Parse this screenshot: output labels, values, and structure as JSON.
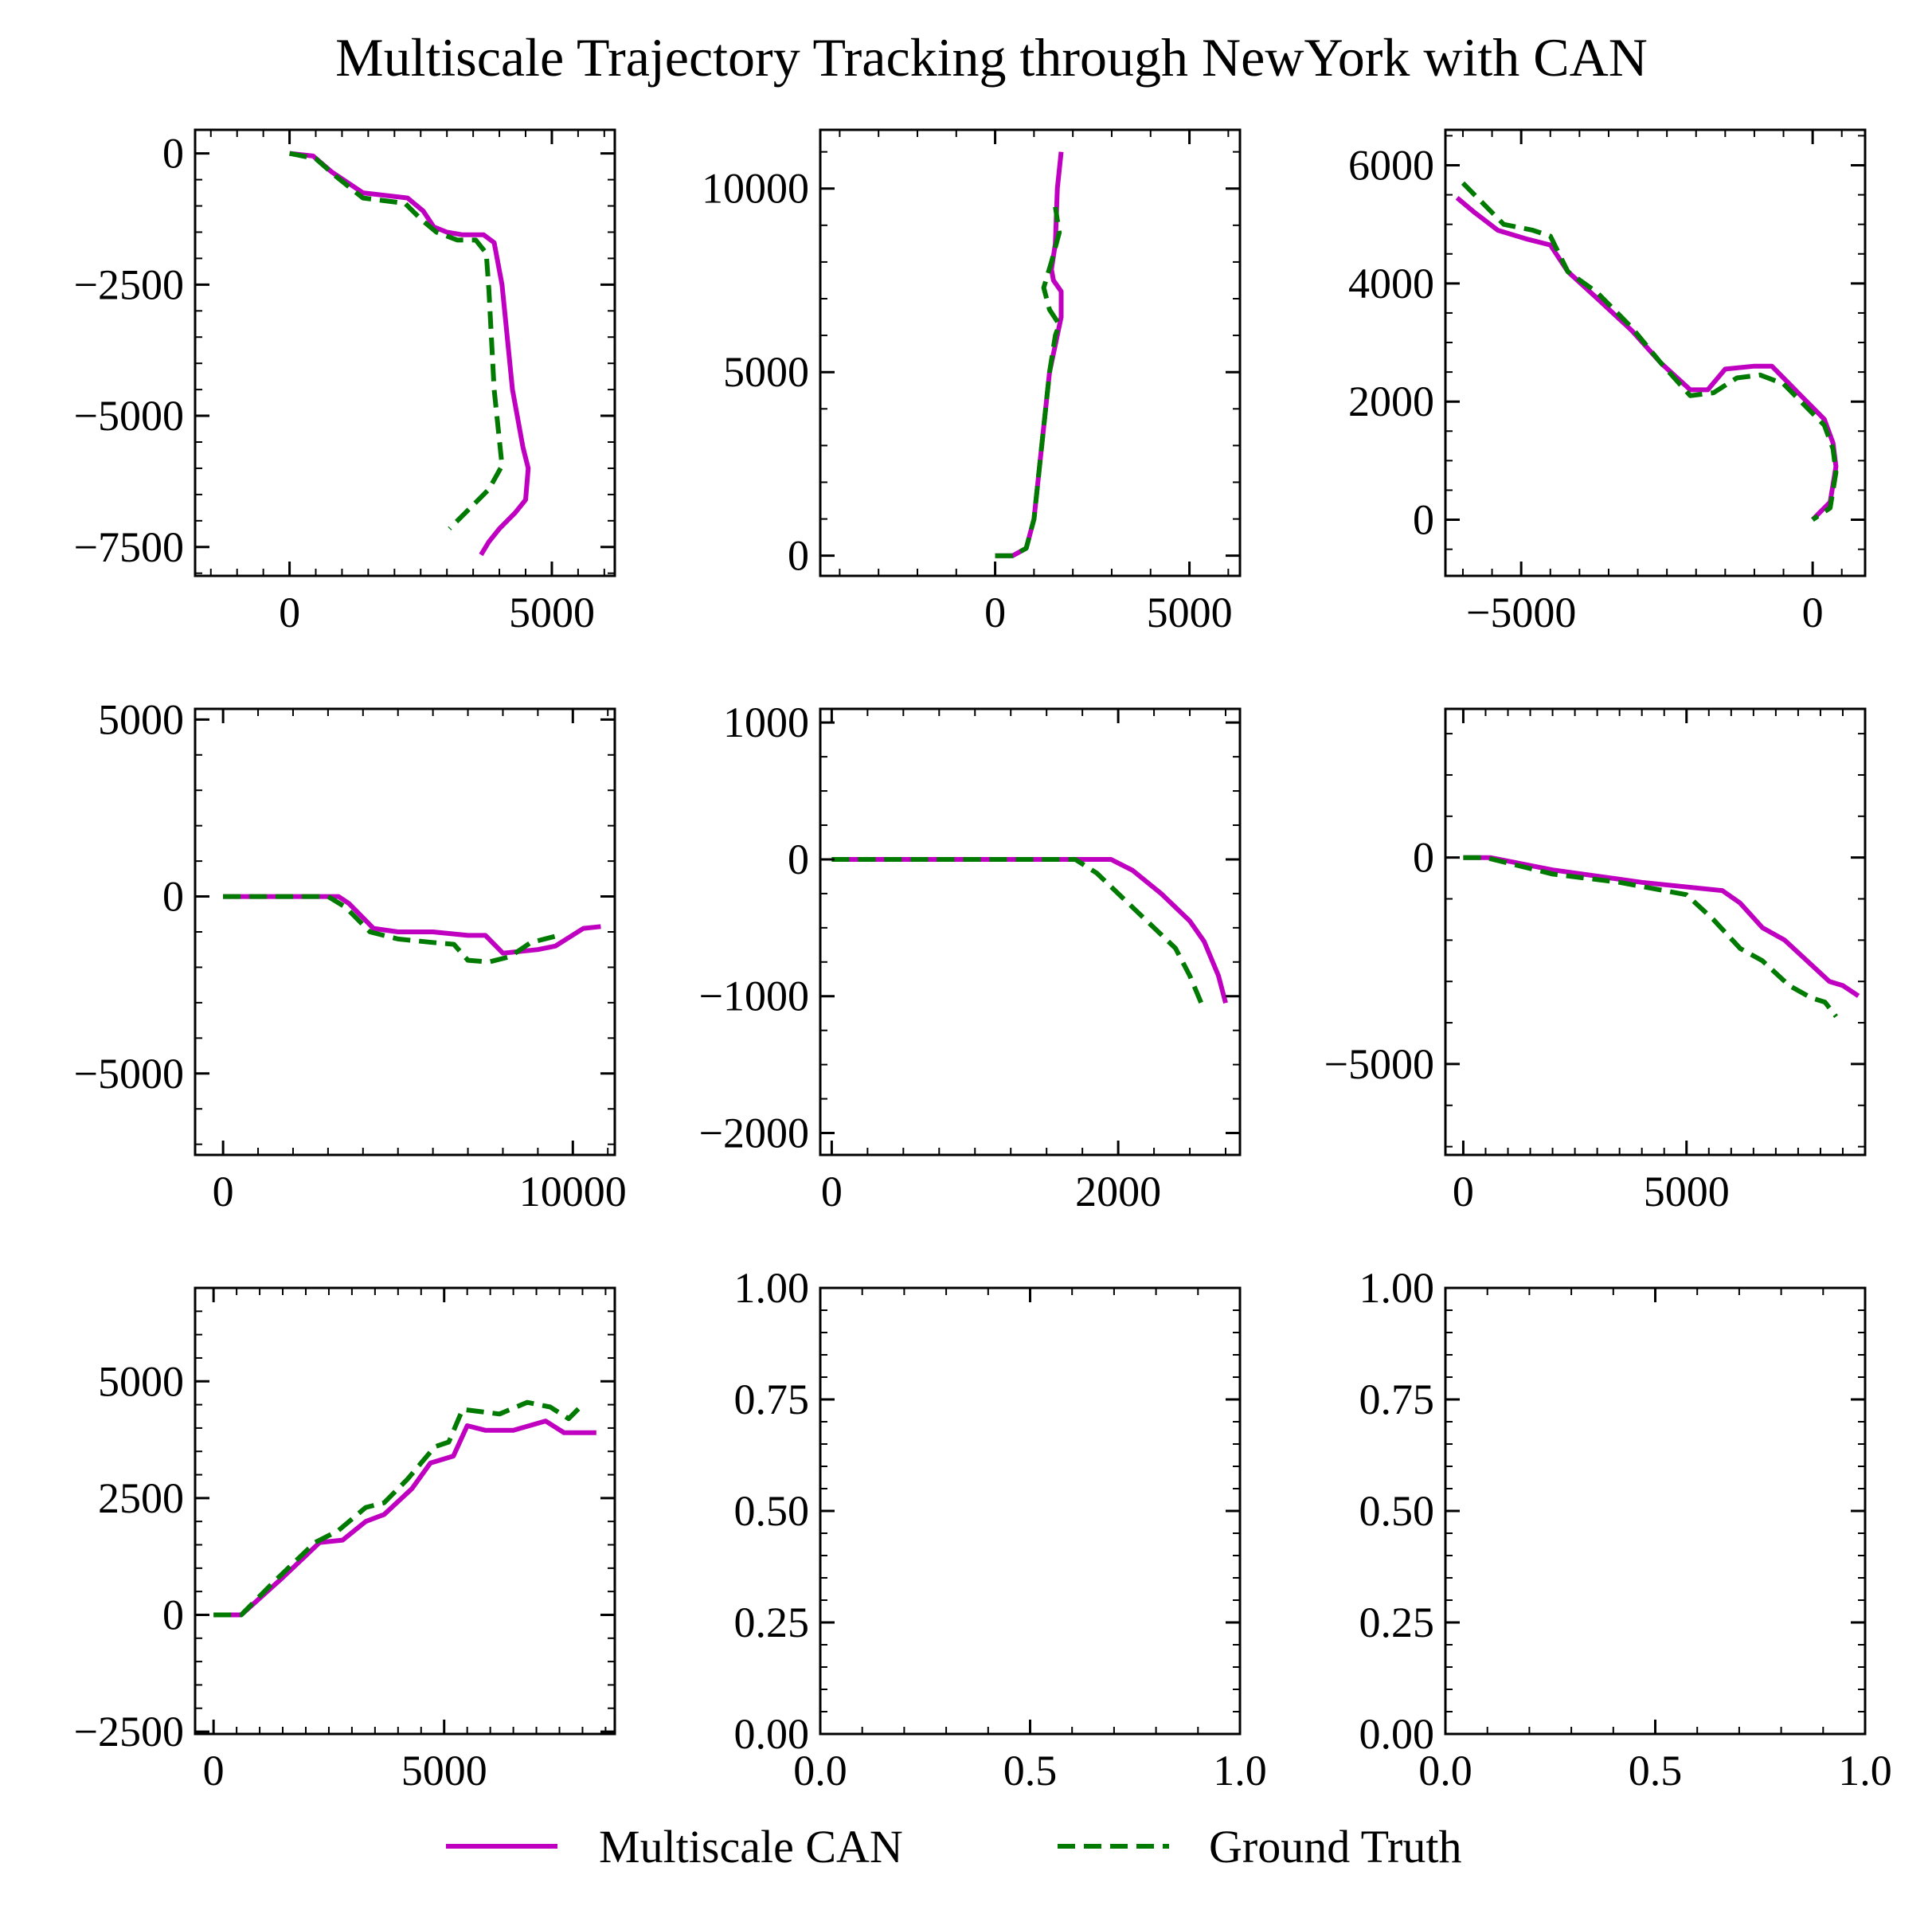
{
  "title": "Multiscale Trajectory Tracking through NewYork with CAN",
  "legend": {
    "placement": "bottom-center",
    "entries": [
      {
        "label": "Multiscale CAN",
        "color": "#c000c0",
        "style": "solid"
      },
      {
        "label": "Ground Truth",
        "color": "#007a00",
        "style": "dashed"
      }
    ]
  },
  "colors": {
    "can": "#c000c0",
    "gt": "#007a00",
    "axis": "#000000"
  },
  "chart_data": [
    {
      "type": "line",
      "xlim": [
        -1800,
        6200
      ],
      "ylim": [
        -8050,
        450
      ],
      "xticks": [
        {
          "v": 0,
          "label": "0"
        },
        {
          "v": 5000,
          "label": "5000"
        }
      ],
      "yticks": [
        {
          "v": 0,
          "label": "0"
        },
        {
          "v": -2500,
          "label": "−2500"
        },
        {
          "v": -5000,
          "label": "−5000"
        },
        {
          "v": -7500,
          "label": "−7500"
        }
      ],
      "xminor": 500,
      "yminor": 500,
      "series": [
        {
          "name": "Multiscale CAN",
          "x": [
            0,
            450,
            800,
            1400,
            2250,
            2550,
            2750,
            3000,
            3300,
            3700,
            3900,
            4050,
            4250,
            4450,
            4550,
            4500,
            4300,
            4000,
            3800,
            3650
          ],
          "y": [
            0,
            -50,
            -350,
            -750,
            -850,
            -1100,
            -1400,
            -1500,
            -1550,
            -1550,
            -1700,
            -2500,
            -4500,
            -5600,
            -6000,
            -6600,
            -6850,
            -7150,
            -7400,
            -7650
          ]
        },
        {
          "name": "Ground Truth",
          "x": [
            0,
            500,
            900,
            1400,
            2200,
            2500,
            2800,
            3200,
            3550,
            3750,
            3800,
            3900,
            4050,
            3800,
            3450,
            3050
          ],
          "y": [
            0,
            -100,
            -450,
            -850,
            -950,
            -1250,
            -1500,
            -1650,
            -1650,
            -1900,
            -2600,
            -4500,
            -5950,
            -6400,
            -6750,
            -7150
          ]
        }
      ]
    },
    {
      "type": "line",
      "xlim": [
        -4500,
        6300
      ],
      "ylim": [
        -550,
        11600
      ],
      "xticks": [
        {
          "v": 0,
          "label": "0"
        },
        {
          "v": 5000,
          "label": "5000"
        }
      ],
      "yticks": [
        {
          "v": 0,
          "label": "0"
        },
        {
          "v": 5000,
          "label": "5000"
        },
        {
          "v": 10000,
          "label": "10000"
        }
      ],
      "xminor": 1000,
      "yminor": 1000,
      "series": [
        {
          "name": "Multiscale CAN",
          "x": [
            0,
            450,
            800,
            1000,
            1200,
            1400,
            1700,
            1700,
            1500,
            1450,
            1550,
            1600,
            1700
          ],
          "y": [
            0,
            0,
            200,
            1000,
            3000,
            5000,
            6500,
            7200,
            7500,
            7800,
            8500,
            10000,
            11000
          ]
        },
        {
          "name": "Ground Truth",
          "x": [
            0,
            450,
            800,
            1000,
            1200,
            1400,
            1550,
            1650,
            1400,
            1250,
            1450,
            1650,
            1550
          ],
          "y": [
            0,
            0,
            200,
            1000,
            3000,
            5000,
            6000,
            6300,
            6700,
            7300,
            8000,
            8800,
            9500
          ]
        }
      ]
    },
    {
      "type": "line",
      "xlim": [
        -6300,
        900
      ],
      "ylim": [
        -950,
        6600
      ],
      "xticks": [
        {
          "v": -5000,
          "label": "−5000"
        },
        {
          "v": 0,
          "label": "0"
        }
      ],
      "yticks": [
        {
          "v": 0,
          "label": "0"
        },
        {
          "v": 2000,
          "label": "2000"
        },
        {
          "v": 4000,
          "label": "4000"
        },
        {
          "v": 6000,
          "label": "6000"
        }
      ],
      "xminor": 500,
      "yminor": 500,
      "series": [
        {
          "name": "Multiscale CAN",
          "x": [
            -6100,
            -5800,
            -5400,
            -4900,
            -4500,
            -4200,
            -3700,
            -3100,
            -2600,
            -2100,
            -1800,
            -1500,
            -1000,
            -700,
            -500,
            -200,
            200,
            350,
            400,
            300,
            0
          ],
          "y": [
            5450,
            5200,
            4900,
            4750,
            4650,
            4200,
            3750,
            3200,
            2650,
            2200,
            2200,
            2550,
            2600,
            2600,
            2400,
            2100,
            1700,
            1300,
            900,
            300,
            0
          ]
        },
        {
          "name": "Ground Truth",
          "x": [
            -6000,
            -5700,
            -5300,
            -4800,
            -4500,
            -4200,
            -3700,
            -3100,
            -2600,
            -2100,
            -1700,
            -1300,
            -900,
            -500,
            -200,
            200,
            350,
            400,
            300,
            0
          ],
          "y": [
            5700,
            5400,
            5000,
            4900,
            4800,
            4200,
            3850,
            3250,
            2650,
            2100,
            2150,
            2400,
            2450,
            2300,
            2000,
            1600,
            1200,
            800,
            200,
            0
          ]
        }
      ]
    },
    {
      "type": "line",
      "xlim": [
        -800,
        11200
      ],
      "ylim": [
        -7300,
        5300
      ],
      "xticks": [
        {
          "v": 0,
          "label": "0"
        },
        {
          "v": 10000,
          "label": "10000"
        }
      ],
      "yticks": [
        {
          "v": -5000,
          "label": "−5000"
        },
        {
          "v": 0,
          "label": "0"
        },
        {
          "v": 5000,
          "label": "5000"
        }
      ],
      "xminor": 1000,
      "yminor": 1000,
      "series": [
        {
          "name": "Multiscale CAN",
          "x": [
            0,
            1500,
            3300,
            3600,
            4300,
            5000,
            6000,
            7000,
            7500,
            8000,
            9000,
            9500,
            10300,
            10800
          ],
          "y": [
            0,
            0,
            0,
            -200,
            -900,
            -1000,
            -1000,
            -1100,
            -1100,
            -1600,
            -1500,
            -1400,
            -900,
            -850
          ]
        },
        {
          "name": "Ground Truth",
          "x": [
            0,
            1500,
            3000,
            3500,
            4200,
            5000,
            6000,
            6600,
            7000,
            7600,
            8200,
            8800,
            9600
          ],
          "y": [
            0,
            0,
            0,
            -300,
            -1000,
            -1200,
            -1300,
            -1350,
            -1800,
            -1850,
            -1700,
            -1300,
            -1100
          ]
        }
      ]
    },
    {
      "type": "line",
      "xlim": [
        -80,
        2850
      ],
      "ylim": [
        -2160,
        1100
      ],
      "xticks": [
        {
          "v": 0,
          "label": "0"
        },
        {
          "v": 2000,
          "label": "2000"
        }
      ],
      "yticks": [
        {
          "v": -2000,
          "label": "−2000"
        },
        {
          "v": -1000,
          "label": "−1000"
        },
        {
          "v": 0,
          "label": "0"
        },
        {
          "v": 1000,
          "label": "1000"
        }
      ],
      "xminor": 250,
      "yminor": 250,
      "series": [
        {
          "name": "Multiscale CAN",
          "x": [
            0,
            1000,
            1950,
            2100,
            2300,
            2500,
            2600,
            2700,
            2750
          ],
          "y": [
            0,
            0,
            0,
            -80,
            -250,
            -450,
            -600,
            -850,
            -1050
          ]
        },
        {
          "name": "Ground Truth",
          "x": [
            0,
            1000,
            1700,
            1850,
            2050,
            2250,
            2400,
            2500,
            2580
          ],
          "y": [
            0,
            0,
            0,
            -100,
            -300,
            -500,
            -650,
            -850,
            -1050
          ]
        }
      ]
    },
    {
      "type": "line",
      "xlim": [
        -400,
        9000
      ],
      "ylim": [
        -7200,
        3600
      ],
      "xticks": [
        {
          "v": 0,
          "label": "0"
        },
        {
          "v": 5000,
          "label": "5000"
        }
      ],
      "yticks": [
        {
          "v": -5000,
          "label": "−5000"
        },
        {
          "v": 0,
          "label": "0"
        }
      ],
      "xminor": 500,
      "yminor": 1000,
      "series": [
        {
          "name": "Multiscale CAN",
          "x": [
            0,
            600,
            2000,
            4000,
            5800,
            6200,
            6700,
            7200,
            7700,
            8200,
            8500,
            8850
          ],
          "y": [
            0,
            0,
            -300,
            -600,
            -800,
            -1100,
            -1700,
            -2000,
            -2500,
            -3000,
            -3100,
            -3350
          ]
        },
        {
          "name": "Ground Truth",
          "x": [
            0,
            500,
            2000,
            3500,
            5000,
            5600,
            6200,
            6700,
            7300,
            7800,
            8100,
            8350
          ],
          "y": [
            0,
            0,
            -400,
            -600,
            -900,
            -1500,
            -2200,
            -2500,
            -3100,
            -3400,
            -3500,
            -3850
          ]
        }
      ]
    },
    {
      "type": "line",
      "xlim": [
        -400,
        8700
      ],
      "ylim": [
        -2550,
        7000
      ],
      "xticks": [
        {
          "v": 0,
          "label": "0"
        },
        {
          "v": 5000,
          "label": "5000"
        }
      ],
      "yticks": [
        {
          "v": -2500,
          "label": "−2500"
        },
        {
          "v": 0,
          "label": "0"
        },
        {
          "v": 2500,
          "label": "2500"
        },
        {
          "v": 5000,
          "label": "5000"
        }
      ],
      "xminor": 500,
      "yminor": 500,
      "series": [
        {
          "name": "Multiscale CAN",
          "x": [
            0,
            600,
            1500,
            2300,
            2800,
            3300,
            3700,
            4300,
            4700,
            5200,
            5500,
            5900,
            6500,
            7200,
            7600,
            8300
          ],
          "y": [
            0,
            0,
            800,
            1550,
            1600,
            2000,
            2150,
            2700,
            3250,
            3400,
            4050,
            3950,
            3950,
            4150,
            3900,
            3900
          ]
        },
        {
          "name": "Ground Truth",
          "x": [
            0,
            600,
            1300,
            2200,
            2700,
            3300,
            3700,
            4200,
            4800,
            5100,
            5400,
            5800,
            6200,
            6800,
            7300,
            7700,
            7950
          ],
          "y": [
            0,
            0,
            700,
            1550,
            1800,
            2300,
            2400,
            2900,
            3600,
            3700,
            4400,
            4350,
            4300,
            4550,
            4450,
            4200,
            4450
          ]
        }
      ]
    },
    {
      "type": "line",
      "xlim": [
        0,
        1
      ],
      "ylim": [
        0,
        1
      ],
      "xticks": [
        {
          "v": 0,
          "label": "0.0"
        },
        {
          "v": 0.5,
          "label": "0.5"
        },
        {
          "v": 1,
          "label": "1.0"
        }
      ],
      "yticks": [
        {
          "v": 0,
          "label": "0.00"
        },
        {
          "v": 0.25,
          "label": "0.25"
        },
        {
          "v": 0.5,
          "label": "0.50"
        },
        {
          "v": 0.75,
          "label": "0.75"
        },
        {
          "v": 1,
          "label": "1.00"
        }
      ],
      "xminor": 0.1,
      "yminor": 0.05,
      "series": []
    },
    {
      "type": "line",
      "xlim": [
        0,
        1
      ],
      "ylim": [
        0,
        1
      ],
      "xticks": [
        {
          "v": 0,
          "label": "0.0"
        },
        {
          "v": 0.5,
          "label": "0.5"
        },
        {
          "v": 1,
          "label": "1.0"
        }
      ],
      "yticks": [
        {
          "v": 0,
          "label": "0.00"
        },
        {
          "v": 0.25,
          "label": "0.25"
        },
        {
          "v": 0.5,
          "label": "0.50"
        },
        {
          "v": 0.75,
          "label": "0.75"
        },
        {
          "v": 1,
          "label": "1.00"
        }
      ],
      "xminor": 0.1,
      "yminor": 0.05,
      "series": []
    }
  ]
}
